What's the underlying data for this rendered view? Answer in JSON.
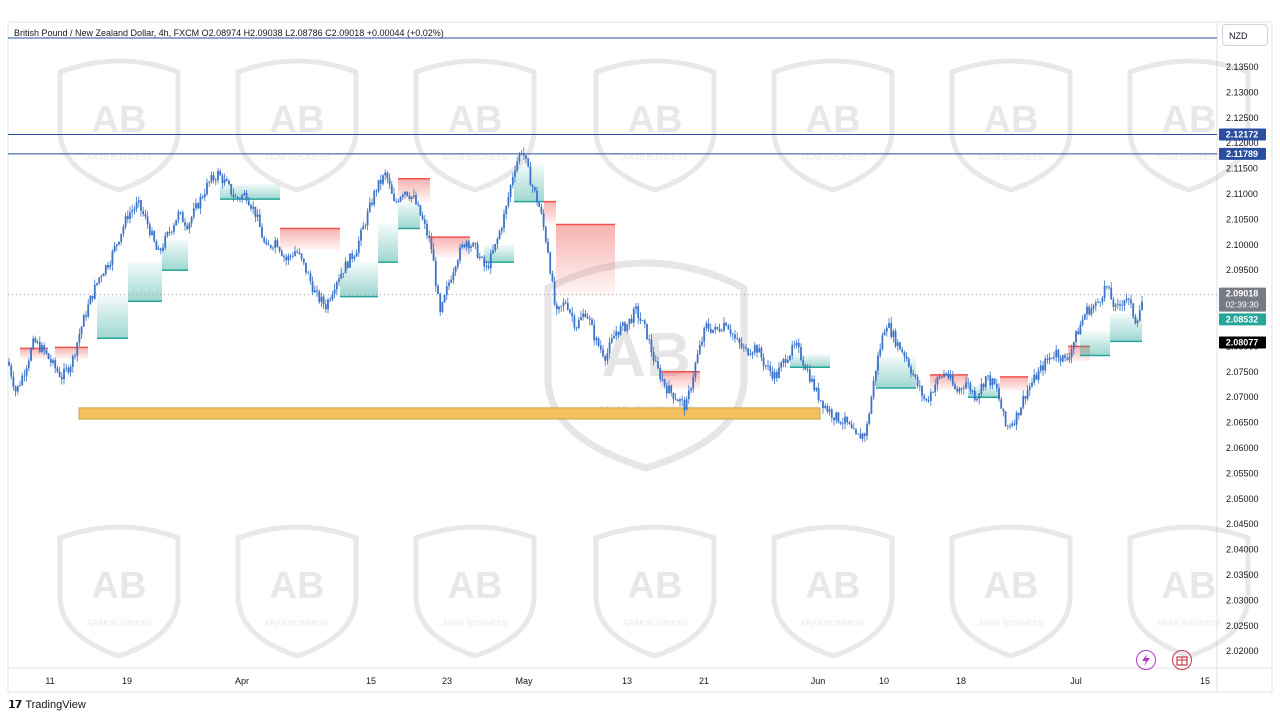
{
  "header": {
    "symbol_title": "British Pound / New Zealand Dollar, 4h, FXCM  O2.08974  H2.09038  L2.08786  C2.09018  +0.00044 (+0.02%)",
    "currency": "NZD"
  },
  "footer": {
    "brand": "TradingView"
  },
  "watermark": {
    "text": "ARAB BUSINESS"
  },
  "colors": {
    "candle": "#3b73c8",
    "bull_zone": "#26a69a",
    "bear_zone": "#ef5350",
    "resistance_line": "#2a4fa0",
    "support_zone_fill": "#f5c15e",
    "support_zone_border": "#c9a14a"
  },
  "icons": [
    "lightning-icon",
    "gift-icon"
  ],
  "chart_data": {
    "type": "candlestick",
    "title": "British Pound / New Zealand Dollar, 4h, FXCM",
    "timeframe": "4h",
    "ohlc_last": {
      "open": 2.08974,
      "high": 2.09038,
      "low": 2.08786,
      "close": 2.09018,
      "change": 0.00044,
      "change_pct": 0.02
    },
    "ylim": [
      2.015,
      2.14
    ],
    "y_ticks": [
      "2.13500",
      "2.13000",
      "2.12500",
      "2.12000",
      "2.11500",
      "2.11000",
      "2.10500",
      "2.10000",
      "2.09500",
      "2.09000",
      "2.08500",
      "2.08000",
      "2.07500",
      "2.07000",
      "2.06500",
      "2.06000",
      "2.05500",
      "2.05000",
      "2.04500",
      "2.04000",
      "2.03500",
      "2.03000",
      "2.02500",
      "2.02000"
    ],
    "x_ticks": [
      "11",
      "19",
      "Apr",
      "15",
      "23",
      "May",
      "13",
      "21",
      "Jun",
      "10",
      "18",
      "Jul",
      "15"
    ],
    "horizontal_lines": [
      {
        "price": 2.12172,
        "label": "2.12172"
      },
      {
        "price": 2.11789,
        "label": "2.11789"
      }
    ],
    "price_labels": {
      "last": "2.09018",
      "countdown": "02:39:30",
      "green": "2.08532",
      "black": "2.08077"
    },
    "support_zone": {
      "low": 2.0657,
      "high": 2.0679,
      "from": "Mar 14",
      "to": "Jun 1"
    },
    "path": [
      [
        0,
        2.087
      ],
      [
        8,
        2.077
      ],
      [
        16,
        2.071
      ],
      [
        24,
        2.075
      ],
      [
        34,
        2.081
      ],
      [
        44,
        2.079
      ],
      [
        54,
        2.076
      ],
      [
        62,
        2.074
      ],
      [
        72,
        2.077
      ],
      [
        80,
        2.083
      ],
      [
        90,
        2.089
      ],
      [
        100,
        2.094
      ],
      [
        110,
        2.097
      ],
      [
        118,
        2.101
      ],
      [
        128,
        2.106
      ],
      [
        138,
        2.108
      ],
      [
        148,
        2.104
      ],
      [
        158,
        2.098
      ],
      [
        168,
        2.102
      ],
      [
        178,
        2.106
      ],
      [
        188,
        2.104
      ],
      [
        198,
        2.108
      ],
      [
        208,
        2.112
      ],
      [
        218,
        2.114
      ],
      [
        226,
        2.112
      ],
      [
        236,
        2.109
      ],
      [
        246,
        2.11
      ],
      [
        256,
        2.106
      ],
      [
        266,
        2.099
      ],
      [
        276,
        2.101
      ],
      [
        286,
        2.097
      ],
      [
        296,
        2.099
      ],
      [
        306,
        2.095
      ],
      [
        316,
        2.09
      ],
      [
        326,
        2.088
      ],
      [
        336,
        2.093
      ],
      [
        346,
        2.096
      ],
      [
        356,
        2.099
      ],
      [
        366,
        2.105
      ],
      [
        376,
        2.111
      ],
      [
        386,
        2.114
      ],
      [
        394,
        2.108
      ],
      [
        404,
        2.111
      ],
      [
        414,
        2.109
      ],
      [
        424,
        2.104
      ],
      [
        432,
        2.099
      ],
      [
        440,
        2.086
      ],
      [
        448,
        2.092
      ],
      [
        456,
        2.097
      ],
      [
        466,
        2.101
      ],
      [
        476,
        2.099
      ],
      [
        486,
        2.095
      ],
      [
        496,
        2.1
      ],
      [
        506,
        2.107
      ],
      [
        514,
        2.115
      ],
      [
        522,
        2.119
      ],
      [
        530,
        2.113
      ],
      [
        540,
        2.107
      ],
      [
        548,
        2.099
      ],
      [
        556,
        2.086
      ],
      [
        566,
        2.089
      ],
      [
        576,
        2.084
      ],
      [
        586,
        2.087
      ],
      [
        596,
        2.081
      ],
      [
        606,
        2.078
      ],
      [
        616,
        2.083
      ],
      [
        626,
        2.084
      ],
      [
        636,
        2.087
      ],
      [
        646,
        2.083
      ],
      [
        656,
        2.076
      ],
      [
        666,
        2.072
      ],
      [
        676,
        2.07
      ],
      [
        686,
        2.068
      ],
      [
        696,
        2.077
      ],
      [
        706,
        2.084
      ],
      [
        716,
        2.083
      ],
      [
        726,
        2.085
      ],
      [
        736,
        2.081
      ],
      [
        746,
        2.079
      ],
      [
        756,
        2.08
      ],
      [
        766,
        2.076
      ],
      [
        776,
        2.074
      ],
      [
        786,
        2.078
      ],
      [
        796,
        2.08
      ],
      [
        806,
        2.076
      ],
      [
        816,
        2.071
      ],
      [
        826,
        2.068
      ],
      [
        836,
        2.066
      ],
      [
        846,
        2.065
      ],
      [
        856,
        2.062
      ],
      [
        866,
        2.063
      ],
      [
        876,
        2.076
      ],
      [
        886,
        2.085
      ],
      [
        896,
        2.081
      ],
      [
        906,
        2.078
      ],
      [
        916,
        2.073
      ],
      [
        926,
        2.069
      ],
      [
        936,
        2.073
      ],
      [
        946,
        2.075
      ],
      [
        956,
        2.071
      ],
      [
        966,
        2.073
      ],
      [
        976,
        2.07
      ],
      [
        986,
        2.074
      ],
      [
        996,
        2.072
      ],
      [
        1006,
        2.064
      ],
      [
        1016,
        2.066
      ],
      [
        1026,
        2.071
      ],
      [
        1036,
        2.074
      ],
      [
        1046,
        2.077
      ],
      [
        1056,
        2.079
      ],
      [
        1066,
        2.077
      ],
      [
        1076,
        2.082
      ],
      [
        1086,
        2.087
      ],
      [
        1096,
        2.088
      ],
      [
        1106,
        2.092
      ],
      [
        1116,
        2.087
      ],
      [
        1126,
        2.09
      ],
      [
        1136,
        2.085
      ],
      [
        1144,
        2.09
      ]
    ],
    "trail_zones": [
      {
        "kind": "bear",
        "x0": 20,
        "x1": 48,
        "line": 2.0796,
        "edge": 2.0775
      },
      {
        "kind": "bear",
        "x0": 55,
        "x1": 88,
        "line": 2.0798,
        "edge": 2.0775
      },
      {
        "kind": "bull",
        "x0": 97,
        "x1": 128,
        "line": 2.0816,
        "edge": 2.09
      },
      {
        "kind": "bull",
        "x0": 128,
        "x1": 162,
        "line": 2.0889,
        "edge": 2.0966
      },
      {
        "kind": "bull",
        "x0": 162,
        "x1": 188,
        "line": 2.095,
        "edge": 2.101
      },
      {
        "kind": "bull",
        "x0": 220,
        "x1": 280,
        "line": 2.109,
        "edge": 2.112
      },
      {
        "kind": "bear",
        "x0": 280,
        "x1": 340,
        "line": 2.1032,
        "edge": 2.099
      },
      {
        "kind": "bull",
        "x0": 340,
        "x1": 378,
        "line": 2.0898,
        "edge": 2.0965
      },
      {
        "kind": "bull",
        "x0": 378,
        "x1": 398,
        "line": 2.0966,
        "edge": 2.104
      },
      {
        "kind": "bull",
        "x0": 398,
        "x1": 420,
        "line": 2.1032,
        "edge": 2.1085
      },
      {
        "kind": "bear",
        "x0": 398,
        "x1": 430,
        "line": 2.113,
        "edge": 2.1085
      },
      {
        "kind": "bear",
        "x0": 430,
        "x1": 470,
        "line": 2.1015,
        "edge": 2.0975
      },
      {
        "kind": "bull",
        "x0": 484,
        "x1": 514,
        "line": 2.0966,
        "edge": 2.1
      },
      {
        "kind": "bull",
        "x0": 514,
        "x1": 544,
        "line": 2.1085,
        "edge": 2.116
      },
      {
        "kind": "bear",
        "x0": 544,
        "x1": 556,
        "line": 2.1085,
        "edge": 2.104
      },
      {
        "kind": "bear",
        "x0": 556,
        "x1": 615,
        "line": 2.104,
        "edge": 2.09
      },
      {
        "kind": "bear",
        "x0": 660,
        "x1": 700,
        "line": 2.075,
        "edge": 2.0715
      },
      {
        "kind": "bull",
        "x0": 790,
        "x1": 830,
        "line": 2.0759,
        "edge": 2.0785
      },
      {
        "kind": "bull",
        "x0": 876,
        "x1": 916,
        "line": 2.0718,
        "edge": 2.078
      },
      {
        "kind": "bear",
        "x0": 930,
        "x1": 968,
        "line": 2.0744,
        "edge": 2.0715
      },
      {
        "kind": "bull",
        "x0": 968,
        "x1": 1000,
        "line": 2.07,
        "edge": 2.0725
      },
      {
        "kind": "bear",
        "x0": 1000,
        "x1": 1028,
        "line": 2.074,
        "edge": 2.0712
      },
      {
        "kind": "bear",
        "x0": 1068,
        "x1": 1090,
        "line": 2.08,
        "edge": 2.077
      },
      {
        "kind": "bull",
        "x0": 1080,
        "x1": 1110,
        "line": 2.0782,
        "edge": 2.083
      },
      {
        "kind": "bull",
        "x0": 1110,
        "x1": 1142,
        "line": 2.081,
        "edge": 2.0865
      }
    ]
  }
}
